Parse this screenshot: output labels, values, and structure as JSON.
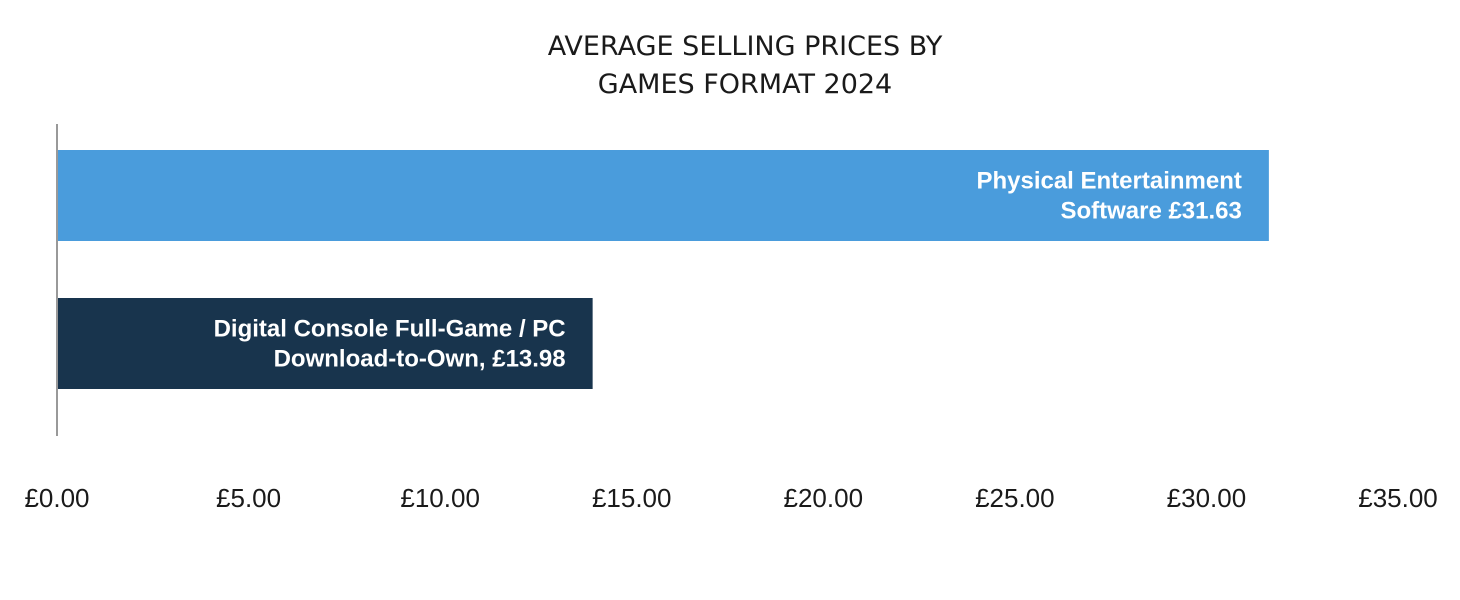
{
  "chart_data": {
    "type": "bar",
    "orientation": "horizontal",
    "title_lines": [
      "AVERAGE SELLING PRICES BY",
      "GAMES FORMAT 2024"
    ],
    "xlim": [
      0,
      35
    ],
    "x_tick_step": 5,
    "x_tick_labels": [
      "£0.00",
      "£5.00",
      "£10.00",
      "£15.00",
      "£20.00",
      "£25.00",
      "£30.00",
      "£35.00"
    ],
    "bars": [
      {
        "category": "Physical Entertainment Software",
        "value": 31.63,
        "label_lines": [
          "Physical Entertainment",
          "Software £31.63"
        ],
        "color": "#4a9cdc"
      },
      {
        "category": "Digital Console Full-Game / PC Download-to-Own",
        "value": 13.98,
        "label_lines": [
          "Digital Console Full-Game / PC",
          "Download-to-Own, £13.98"
        ],
        "color": "#18344d"
      }
    ],
    "axis_color": "#999999",
    "grid": false,
    "legend": "none"
  }
}
